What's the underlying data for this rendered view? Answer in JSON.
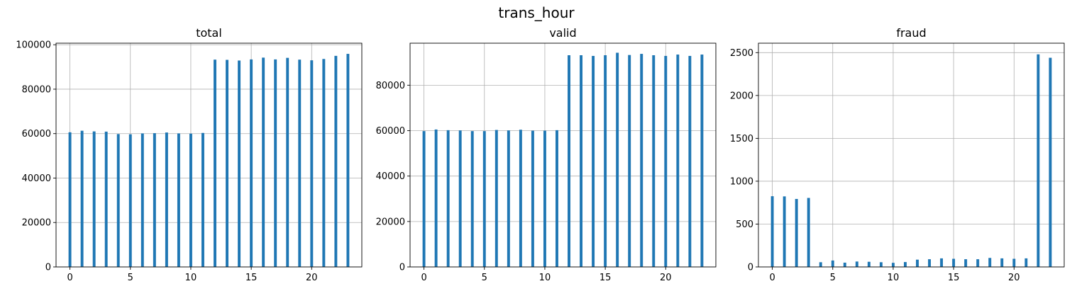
{
  "figure": {
    "title": "trans_hour"
  },
  "chart_data": [
    {
      "type": "bar",
      "title": "total",
      "xlabel": "",
      "ylabel": "",
      "x": [
        0,
        1,
        2,
        3,
        4,
        5,
        6,
        7,
        8,
        9,
        10,
        11,
        12,
        13,
        14,
        15,
        16,
        17,
        18,
        19,
        20,
        21,
        22,
        23
      ],
      "values": [
        60600,
        61300,
        61000,
        60900,
        59800,
        59700,
        60100,
        60200,
        60500,
        60100,
        60000,
        60300,
        93300,
        93200,
        92900,
        93400,
        94200,
        93400,
        94100,
        93300,
        93000,
        93600,
        95000,
        95900
      ],
      "xlim": [
        -1.15,
        24.15
      ],
      "ylim": [
        0,
        100700
      ],
      "xticks": [
        0,
        5,
        10,
        15,
        20
      ],
      "xtick_labels": [
        "0",
        "5",
        "10",
        "15",
        "20"
      ],
      "yticks": [
        0,
        20000,
        40000,
        60000,
        80000,
        100000
      ],
      "ytick_labels": [
        "0",
        "20000",
        "40000",
        "60000",
        "80000",
        "100000"
      ],
      "grid": true,
      "color": "#1f77b4"
    },
    {
      "type": "bar",
      "title": "valid",
      "xlabel": "",
      "ylabel": "",
      "x": [
        0,
        1,
        2,
        3,
        4,
        5,
        6,
        7,
        8,
        9,
        10,
        11,
        12,
        13,
        14,
        15,
        16,
        17,
        18,
        19,
        20,
        21,
        22,
        23
      ],
      "values": [
        59800,
        60500,
        60200,
        60100,
        59800,
        59800,
        60300,
        60100,
        60400,
        60000,
        60000,
        60200,
        93200,
        93200,
        92900,
        93200,
        94300,
        93300,
        93800,
        93200,
        92900,
        93500,
        92900,
        93500
      ],
      "xlim": [
        -1.15,
        24.15
      ],
      "ylim": [
        0,
        98500
      ],
      "xticks": [
        0,
        5,
        10,
        15,
        20
      ],
      "xtick_labels": [
        "0",
        "5",
        "10",
        "15",
        "20"
      ],
      "yticks": [
        0,
        20000,
        40000,
        60000,
        80000
      ],
      "ytick_labels": [
        "0",
        "20000",
        "40000",
        "60000",
        "80000"
      ],
      "grid": true,
      "color": "#1f77b4"
    },
    {
      "type": "bar",
      "title": "fraud",
      "xlabel": "",
      "ylabel": "",
      "x": [
        0,
        1,
        2,
        3,
        4,
        5,
        6,
        7,
        8,
        9,
        10,
        11,
        12,
        13,
        14,
        15,
        16,
        17,
        18,
        19,
        20,
        21,
        22,
        23
      ],
      "values": [
        825,
        823,
        793,
        805,
        55,
        75,
        50,
        63,
        60,
        55,
        48,
        57,
        85,
        90,
        100,
        95,
        90,
        90,
        105,
        100,
        95,
        100,
        2480,
        2440
      ],
      "xlim": [
        -1.15,
        24.15
      ],
      "ylim": [
        0,
        2610
      ],
      "xticks": [
        0,
        5,
        10,
        15,
        20
      ],
      "xtick_labels": [
        "0",
        "5",
        "10",
        "15",
        "20"
      ],
      "yticks": [
        0,
        500,
        1000,
        1500,
        2000,
        2500
      ],
      "ytick_labels": [
        "0",
        "500",
        "1000",
        "1500",
        "2000",
        "2500"
      ],
      "grid": true,
      "color": "#1f77b4"
    }
  ]
}
